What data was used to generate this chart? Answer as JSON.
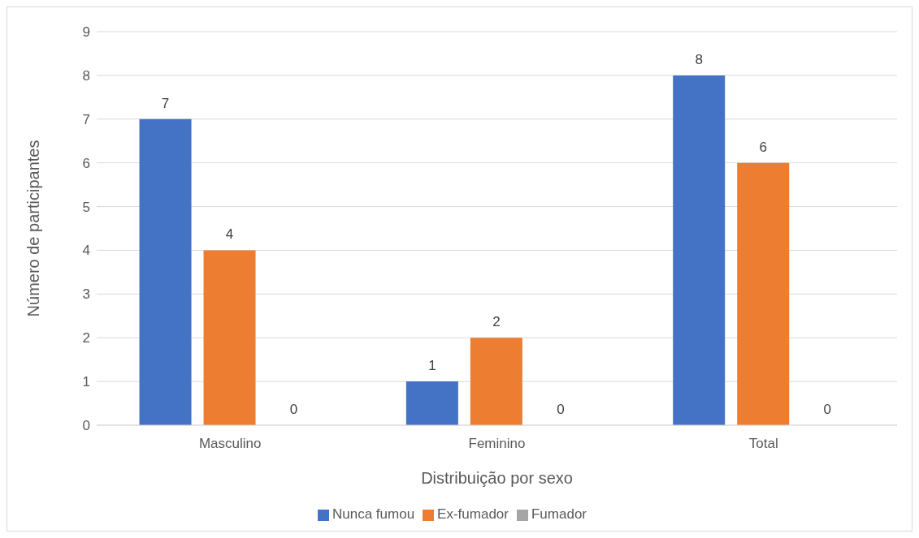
{
  "chart_data": {
    "type": "bar",
    "xlabel": "Distribuição por sexo",
    "ylabel": "Número de participantes",
    "categories": [
      "Masculino",
      "Feminino",
      "Total"
    ],
    "series": [
      {
        "name": "Nunca fumou",
        "color": "#4472c4",
        "values": [
          7,
          1,
          8
        ]
      },
      {
        "name": "Ex-fumador",
        "color": "#ed7d31",
        "values": [
          4,
          2,
          6
        ]
      },
      {
        "name": "Fumador",
        "color": "#a5a5a5",
        "values": [
          0,
          0,
          0
        ]
      }
    ],
    "ylim": [
      0,
      9
    ],
    "yticks": [
      0,
      1,
      2,
      3,
      4,
      5,
      6,
      7,
      8,
      9
    ],
    "grid": "y",
    "legend": "bottom",
    "data_labels": true
  }
}
